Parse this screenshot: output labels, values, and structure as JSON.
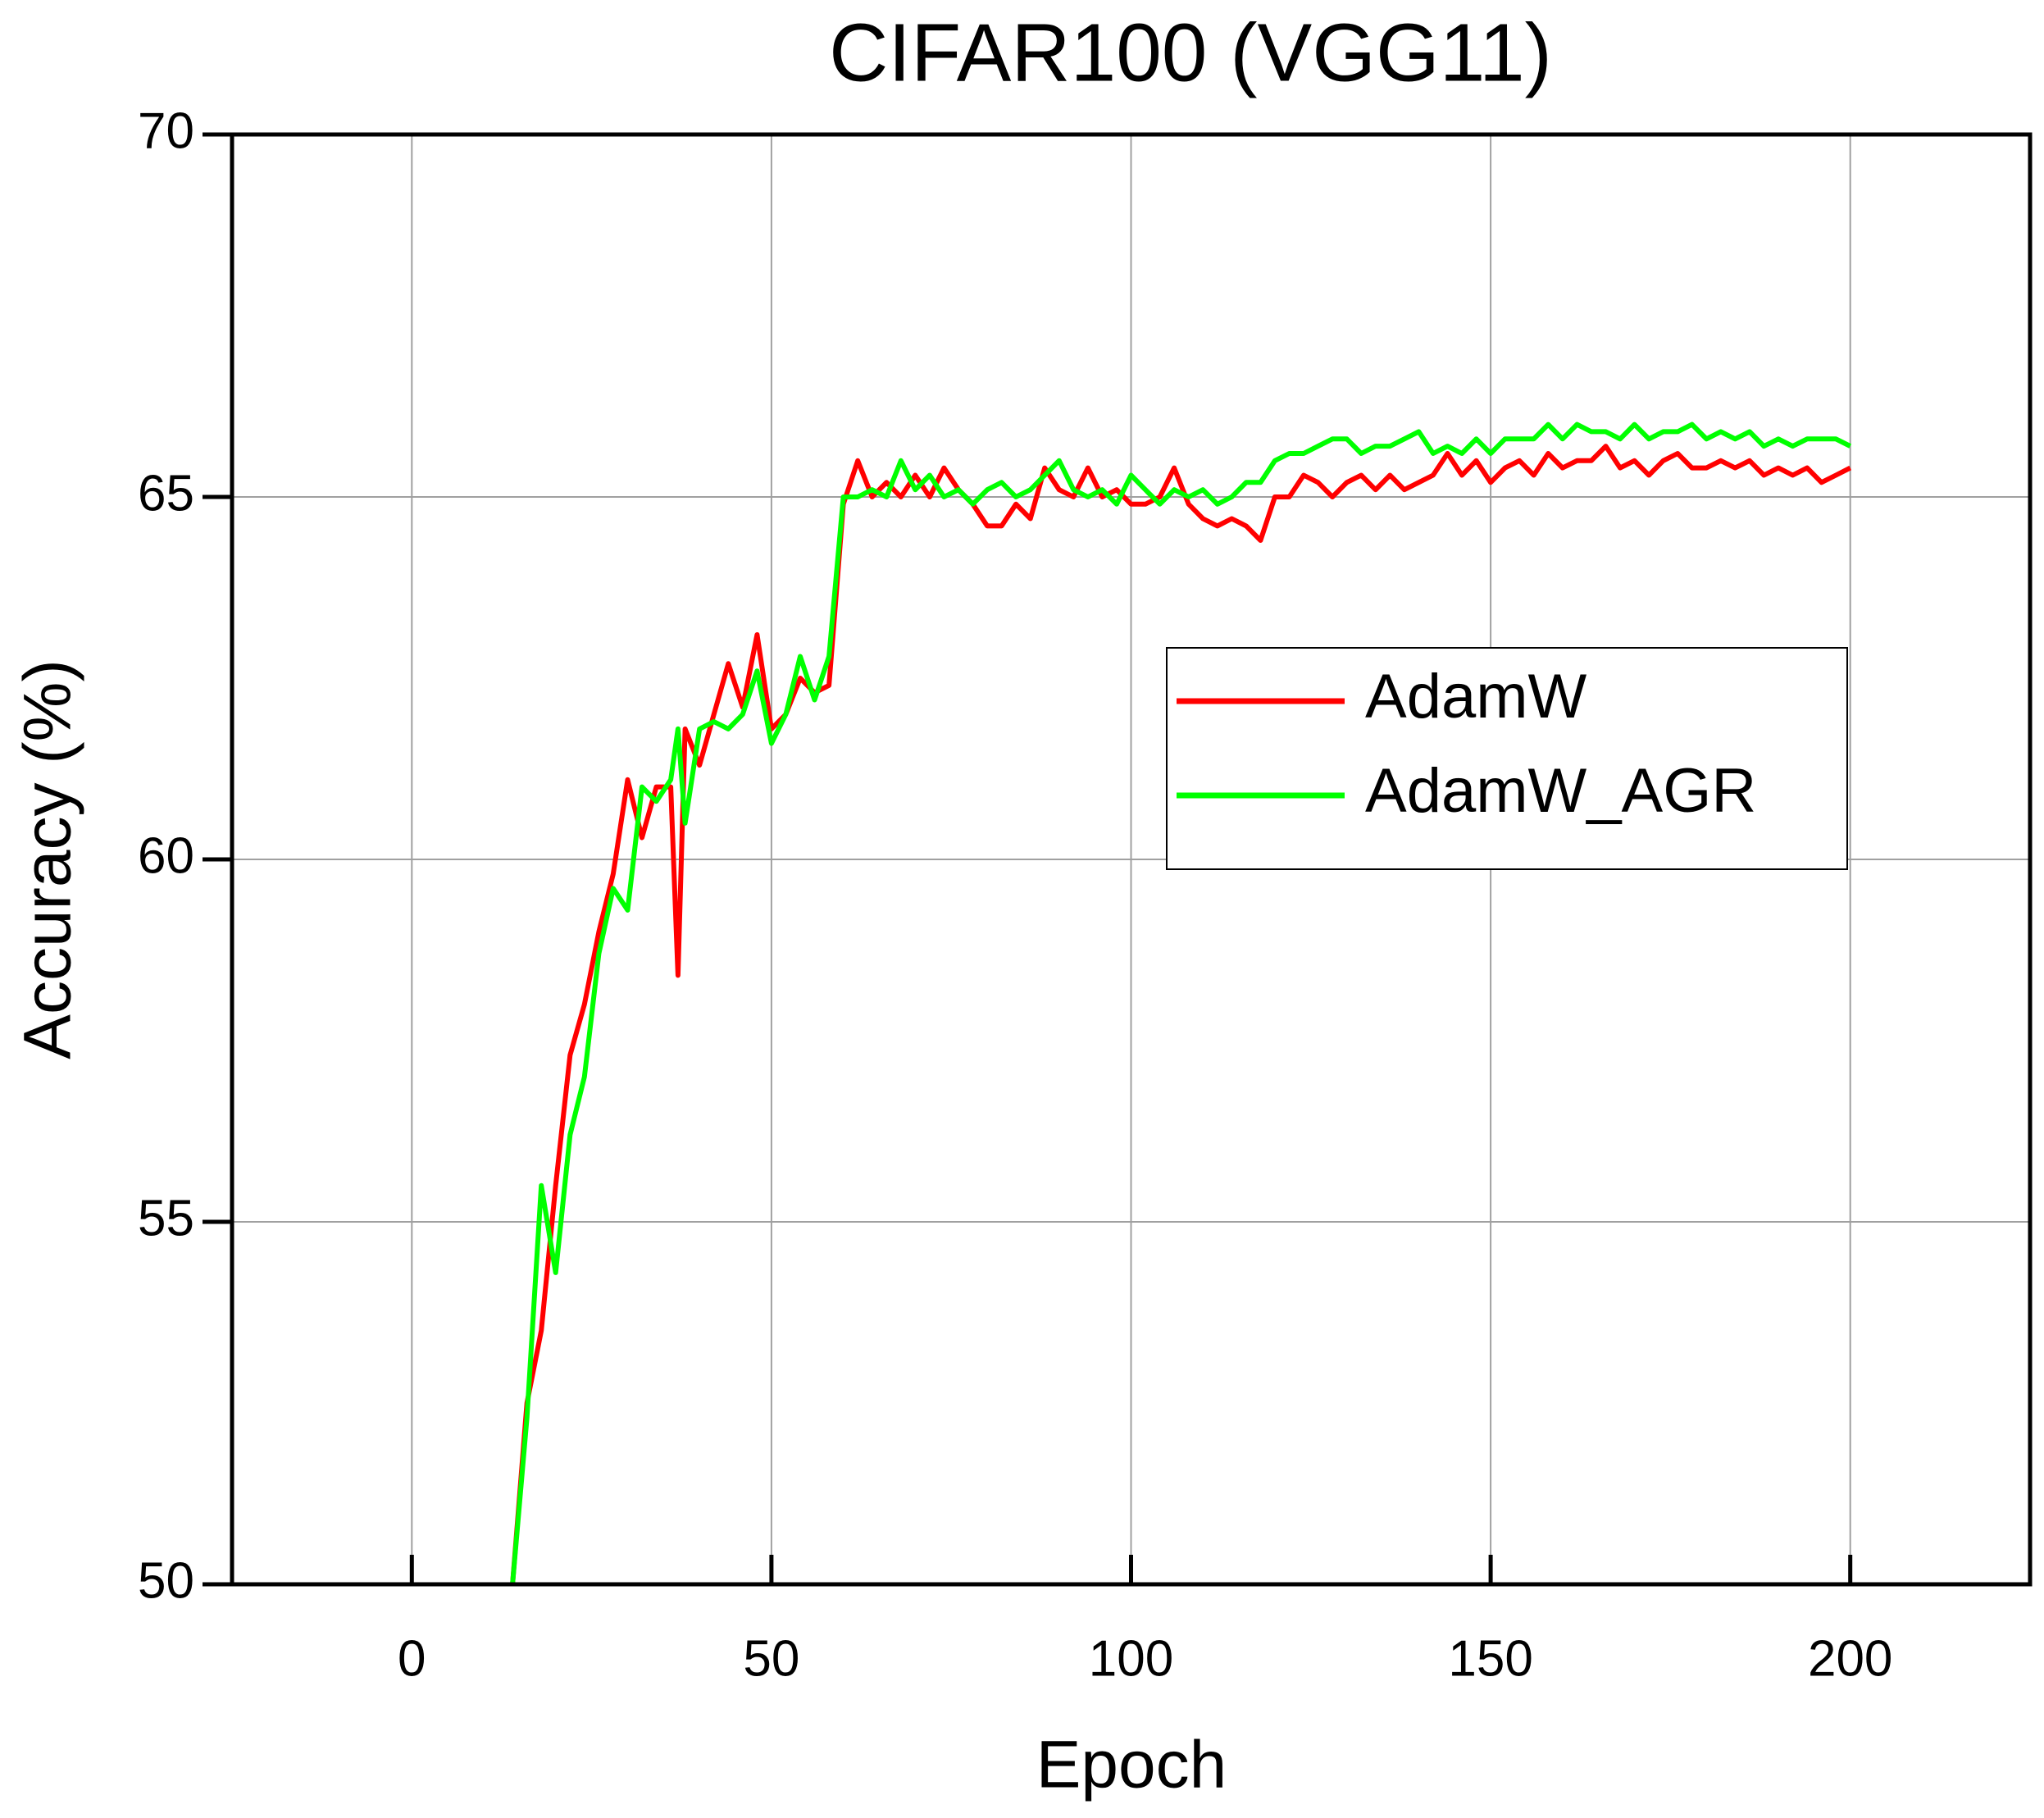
{
  "chart_data": {
    "type": "line",
    "title": "CIFAR100 (VGG11)",
    "x_label": "Epoch",
    "y_label": "Accuracy (%)",
    "x": [
      14,
      16,
      18,
      20,
      22,
      24,
      26,
      28,
      30,
      32,
      34,
      36,
      37,
      38,
      40,
      42,
      44,
      46,
      48,
      50,
      52,
      54,
      56,
      58,
      60,
      62,
      64,
      66,
      68,
      70,
      72,
      74,
      76,
      78,
      80,
      82,
      84,
      86,
      88,
      90,
      92,
      94,
      96,
      98,
      100,
      102,
      104,
      106,
      108,
      110,
      112,
      114,
      116,
      118,
      120,
      122,
      124,
      126,
      128,
      130,
      132,
      134,
      136,
      138,
      140,
      142,
      144,
      146,
      148,
      150,
      152,
      154,
      156,
      158,
      160,
      162,
      164,
      166,
      168,
      170,
      172,
      174,
      176,
      178,
      180,
      182,
      184,
      186,
      188,
      190,
      192,
      194,
      196,
      198,
      200
    ],
    "series": [
      {
        "name": "AdamW",
        "color": "#ff0000",
        "values": [
          50,
          52.5,
          53.5,
          55.5,
          57.3,
          58.0,
          59.0,
          59.8,
          61.1,
          60.3,
          61.0,
          61.0,
          58.4,
          61.8,
          61.3,
          62.0,
          62.7,
          62.1,
          63.1,
          61.8,
          62.0,
          62.5,
          62.3,
          62.4,
          64.9,
          65.5,
          65.0,
          65.2,
          65.0,
          65.3,
          65.0,
          65.4,
          65.1,
          64.9,
          64.6,
          64.6,
          64.9,
          64.7,
          65.4,
          65.1,
          65.0,
          65.4,
          65.0,
          65.1,
          64.9,
          64.9,
          65.0,
          65.4,
          64.9,
          64.7,
          64.6,
          64.7,
          64.6,
          64.4,
          65.0,
          65.0,
          65.3,
          65.2,
          65.0,
          65.2,
          65.3,
          65.1,
          65.3,
          65.1,
          65.2,
          65.3,
          65.6,
          65.3,
          65.5,
          65.2,
          65.4,
          65.5,
          65.3,
          65.6,
          65.4,
          65.5,
          65.5,
          65.7,
          65.4,
          65.5,
          65.3,
          65.5,
          65.6,
          65.4,
          65.4,
          65.5,
          65.4,
          65.5,
          65.3,
          65.4,
          65.3,
          65.4,
          65.2,
          65.3,
          65.4
        ]
      },
      {
        "name": "AdamW_AGR",
        "color": "#00ff00",
        "values": [
          50,
          52.3,
          55.5,
          54.3,
          56.2,
          57.0,
          58.7,
          59.6,
          59.3,
          61.0,
          60.8,
          61.1,
          61.8,
          60.5,
          61.8,
          61.9,
          61.8,
          62.0,
          62.6,
          61.6,
          62.0,
          62.8,
          62.2,
          62.8,
          65.0,
          65.0,
          65.1,
          65.0,
          65.5,
          65.1,
          65.3,
          65.0,
          65.1,
          64.9,
          65.1,
          65.2,
          65.0,
          65.1,
          65.3,
          65.5,
          65.1,
          65.0,
          65.1,
          64.9,
          65.3,
          65.1,
          64.9,
          65.1,
          65.0,
          65.1,
          64.9,
          65.0,
          65.2,
          65.2,
          65.5,
          65.6,
          65.6,
          65.7,
          65.8,
          65.8,
          65.6,
          65.7,
          65.7,
          65.8,
          65.9,
          65.6,
          65.7,
          65.6,
          65.8,
          65.6,
          65.8,
          65.8,
          65.8,
          66.0,
          65.8,
          66.0,
          65.9,
          65.9,
          65.8,
          66.0,
          65.8,
          65.9,
          65.9,
          66.0,
          65.8,
          65.9,
          65.8,
          65.9,
          65.7,
          65.8,
          65.7,
          65.8,
          65.8,
          65.8,
          65.7
        ]
      }
    ],
    "xlim": [
      -25,
      225
    ],
    "xticks": [
      0,
      50,
      100,
      150,
      200
    ],
    "ylim": [
      50,
      70
    ],
    "yticks": [
      50,
      55,
      60,
      65,
      70
    ],
    "grid": true,
    "legend": "center right"
  }
}
